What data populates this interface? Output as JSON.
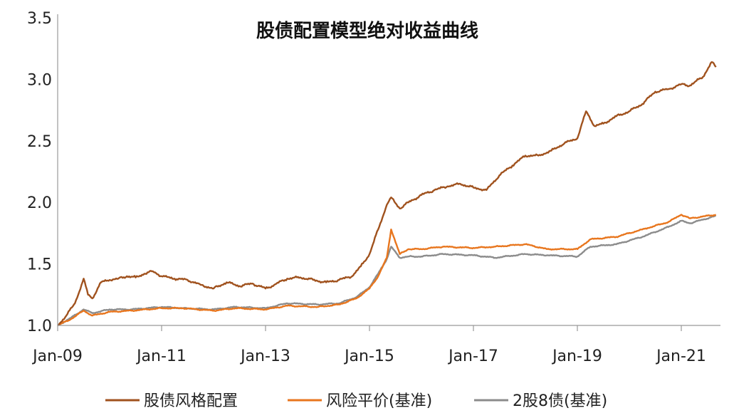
{
  "chart_data": {
    "type": "line",
    "title": "股债配置模型绝对收益曲线",
    "xlabel": "",
    "ylabel": "",
    "x_ticks": [
      "Jan-09",
      "Jan-11",
      "Jan-13",
      "Jan-15",
      "Jan-17",
      "Jan-19",
      "Jan-21"
    ],
    "y_ticks": [
      "1.0",
      "1.5",
      "2.0",
      "2.5",
      "3.0",
      "3.5"
    ],
    "ylim": [
      1.0,
      3.5
    ],
    "xlim": [
      "2009-01",
      "2021-09"
    ],
    "grid": false,
    "legend": "bottom",
    "series": [
      {
        "name": "股债风格配置",
        "color": "#A0521E",
        "points": [
          [
            "2009-01",
            1.0
          ],
          [
            "2009-03",
            1.08
          ],
          [
            "2009-05",
            1.18
          ],
          [
            "2009-07",
            1.38
          ],
          [
            "2009-08",
            1.25
          ],
          [
            "2009-09",
            1.22
          ],
          [
            "2009-11",
            1.35
          ],
          [
            "2010-01",
            1.37
          ],
          [
            "2010-03",
            1.38
          ],
          [
            "2010-05",
            1.4
          ],
          [
            "2010-07",
            1.39
          ],
          [
            "2010-09",
            1.42
          ],
          [
            "2010-11",
            1.44
          ],
          [
            "2011-01",
            1.4
          ],
          [
            "2011-04",
            1.38
          ],
          [
            "2011-07",
            1.37
          ],
          [
            "2011-10",
            1.33
          ],
          [
            "2012-01",
            1.3
          ],
          [
            "2012-04",
            1.35
          ],
          [
            "2012-07",
            1.32
          ],
          [
            "2012-10",
            1.34
          ],
          [
            "2013-01",
            1.3
          ],
          [
            "2013-03",
            1.33
          ],
          [
            "2013-06",
            1.38
          ],
          [
            "2013-09",
            1.39
          ],
          [
            "2013-12",
            1.37
          ],
          [
            "2014-03",
            1.35
          ],
          [
            "2014-06",
            1.37
          ],
          [
            "2014-09",
            1.4
          ],
          [
            "2014-11",
            1.48
          ],
          [
            "2015-01",
            1.58
          ],
          [
            "2015-03",
            1.78
          ],
          [
            "2015-05",
            1.98
          ],
          [
            "2015-06",
            2.04
          ],
          [
            "2015-08",
            1.95
          ],
          [
            "2015-10",
            2.0
          ],
          [
            "2016-01",
            2.06
          ],
          [
            "2016-04",
            2.1
          ],
          [
            "2016-07",
            2.13
          ],
          [
            "2016-10",
            2.15
          ],
          [
            "2017-01",
            2.12
          ],
          [
            "2017-04",
            2.1
          ],
          [
            "2017-07",
            2.22
          ],
          [
            "2017-10",
            2.3
          ],
          [
            "2018-01",
            2.38
          ],
          [
            "2018-04",
            2.38
          ],
          [
            "2018-07",
            2.42
          ],
          [
            "2018-10",
            2.48
          ],
          [
            "2019-01",
            2.52
          ],
          [
            "2019-03",
            2.74
          ],
          [
            "2019-05",
            2.62
          ],
          [
            "2019-07",
            2.64
          ],
          [
            "2019-10",
            2.7
          ],
          [
            "2020-01",
            2.74
          ],
          [
            "2020-04",
            2.8
          ],
          [
            "2020-07",
            2.9
          ],
          [
            "2020-10",
            2.92
          ],
          [
            "2021-01",
            2.96
          ],
          [
            "2021-03",
            2.95
          ],
          [
            "2021-06",
            3.02
          ],
          [
            "2021-08",
            3.14
          ],
          [
            "2021-09",
            3.1
          ]
        ]
      },
      {
        "name": "风险平价(基准)",
        "color": "#E8761E",
        "points": [
          [
            "2009-01",
            1.0
          ],
          [
            "2009-04",
            1.05
          ],
          [
            "2009-07",
            1.12
          ],
          [
            "2009-09",
            1.08
          ],
          [
            "2010-01",
            1.11
          ],
          [
            "2010-06",
            1.12
          ],
          [
            "2011-01",
            1.14
          ],
          [
            "2011-06",
            1.14
          ],
          [
            "2012-01",
            1.12
          ],
          [
            "2012-06",
            1.14
          ],
          [
            "2013-01",
            1.13
          ],
          [
            "2013-06",
            1.16
          ],
          [
            "2014-01",
            1.15
          ],
          [
            "2014-06",
            1.17
          ],
          [
            "2014-10",
            1.22
          ],
          [
            "2015-01",
            1.3
          ],
          [
            "2015-03",
            1.4
          ],
          [
            "2015-05",
            1.55
          ],
          [
            "2015-06",
            1.78
          ],
          [
            "2015-08",
            1.58
          ],
          [
            "2015-10",
            1.62
          ],
          [
            "2016-01",
            1.62
          ],
          [
            "2016-06",
            1.64
          ],
          [
            "2017-01",
            1.63
          ],
          [
            "2017-06",
            1.64
          ],
          [
            "2018-01",
            1.66
          ],
          [
            "2018-06",
            1.62
          ],
          [
            "2019-01",
            1.62
          ],
          [
            "2019-04",
            1.7
          ],
          [
            "2019-10",
            1.72
          ],
          [
            "2020-04",
            1.78
          ],
          [
            "2020-10",
            1.84
          ],
          [
            "2021-01",
            1.9
          ],
          [
            "2021-03",
            1.87
          ],
          [
            "2021-09",
            1.9
          ]
        ]
      },
      {
        "name": "2股8债(基准)",
        "color": "#8C8C8C",
        "points": [
          [
            "2009-01",
            1.0
          ],
          [
            "2009-04",
            1.06
          ],
          [
            "2009-07",
            1.13
          ],
          [
            "2009-09",
            1.1
          ],
          [
            "2010-01",
            1.13
          ],
          [
            "2010-06",
            1.13
          ],
          [
            "2011-01",
            1.15
          ],
          [
            "2011-06",
            1.14
          ],
          [
            "2012-01",
            1.13
          ],
          [
            "2012-06",
            1.15
          ],
          [
            "2013-01",
            1.14
          ],
          [
            "2013-06",
            1.18
          ],
          [
            "2014-01",
            1.17
          ],
          [
            "2014-06",
            1.18
          ],
          [
            "2014-10",
            1.23
          ],
          [
            "2015-01",
            1.31
          ],
          [
            "2015-03",
            1.42
          ],
          [
            "2015-05",
            1.54
          ],
          [
            "2015-06",
            1.64
          ],
          [
            "2015-08",
            1.55
          ],
          [
            "2015-10",
            1.56
          ],
          [
            "2016-01",
            1.56
          ],
          [
            "2016-06",
            1.58
          ],
          [
            "2017-01",
            1.57
          ],
          [
            "2017-06",
            1.55
          ],
          [
            "2018-01",
            1.58
          ],
          [
            "2018-06",
            1.57
          ],
          [
            "2019-01",
            1.56
          ],
          [
            "2019-04",
            1.64
          ],
          [
            "2019-10",
            1.66
          ],
          [
            "2020-04",
            1.72
          ],
          [
            "2020-10",
            1.8
          ],
          [
            "2021-01",
            1.85
          ],
          [
            "2021-03",
            1.83
          ],
          [
            "2021-09",
            1.89
          ]
        ]
      }
    ]
  }
}
